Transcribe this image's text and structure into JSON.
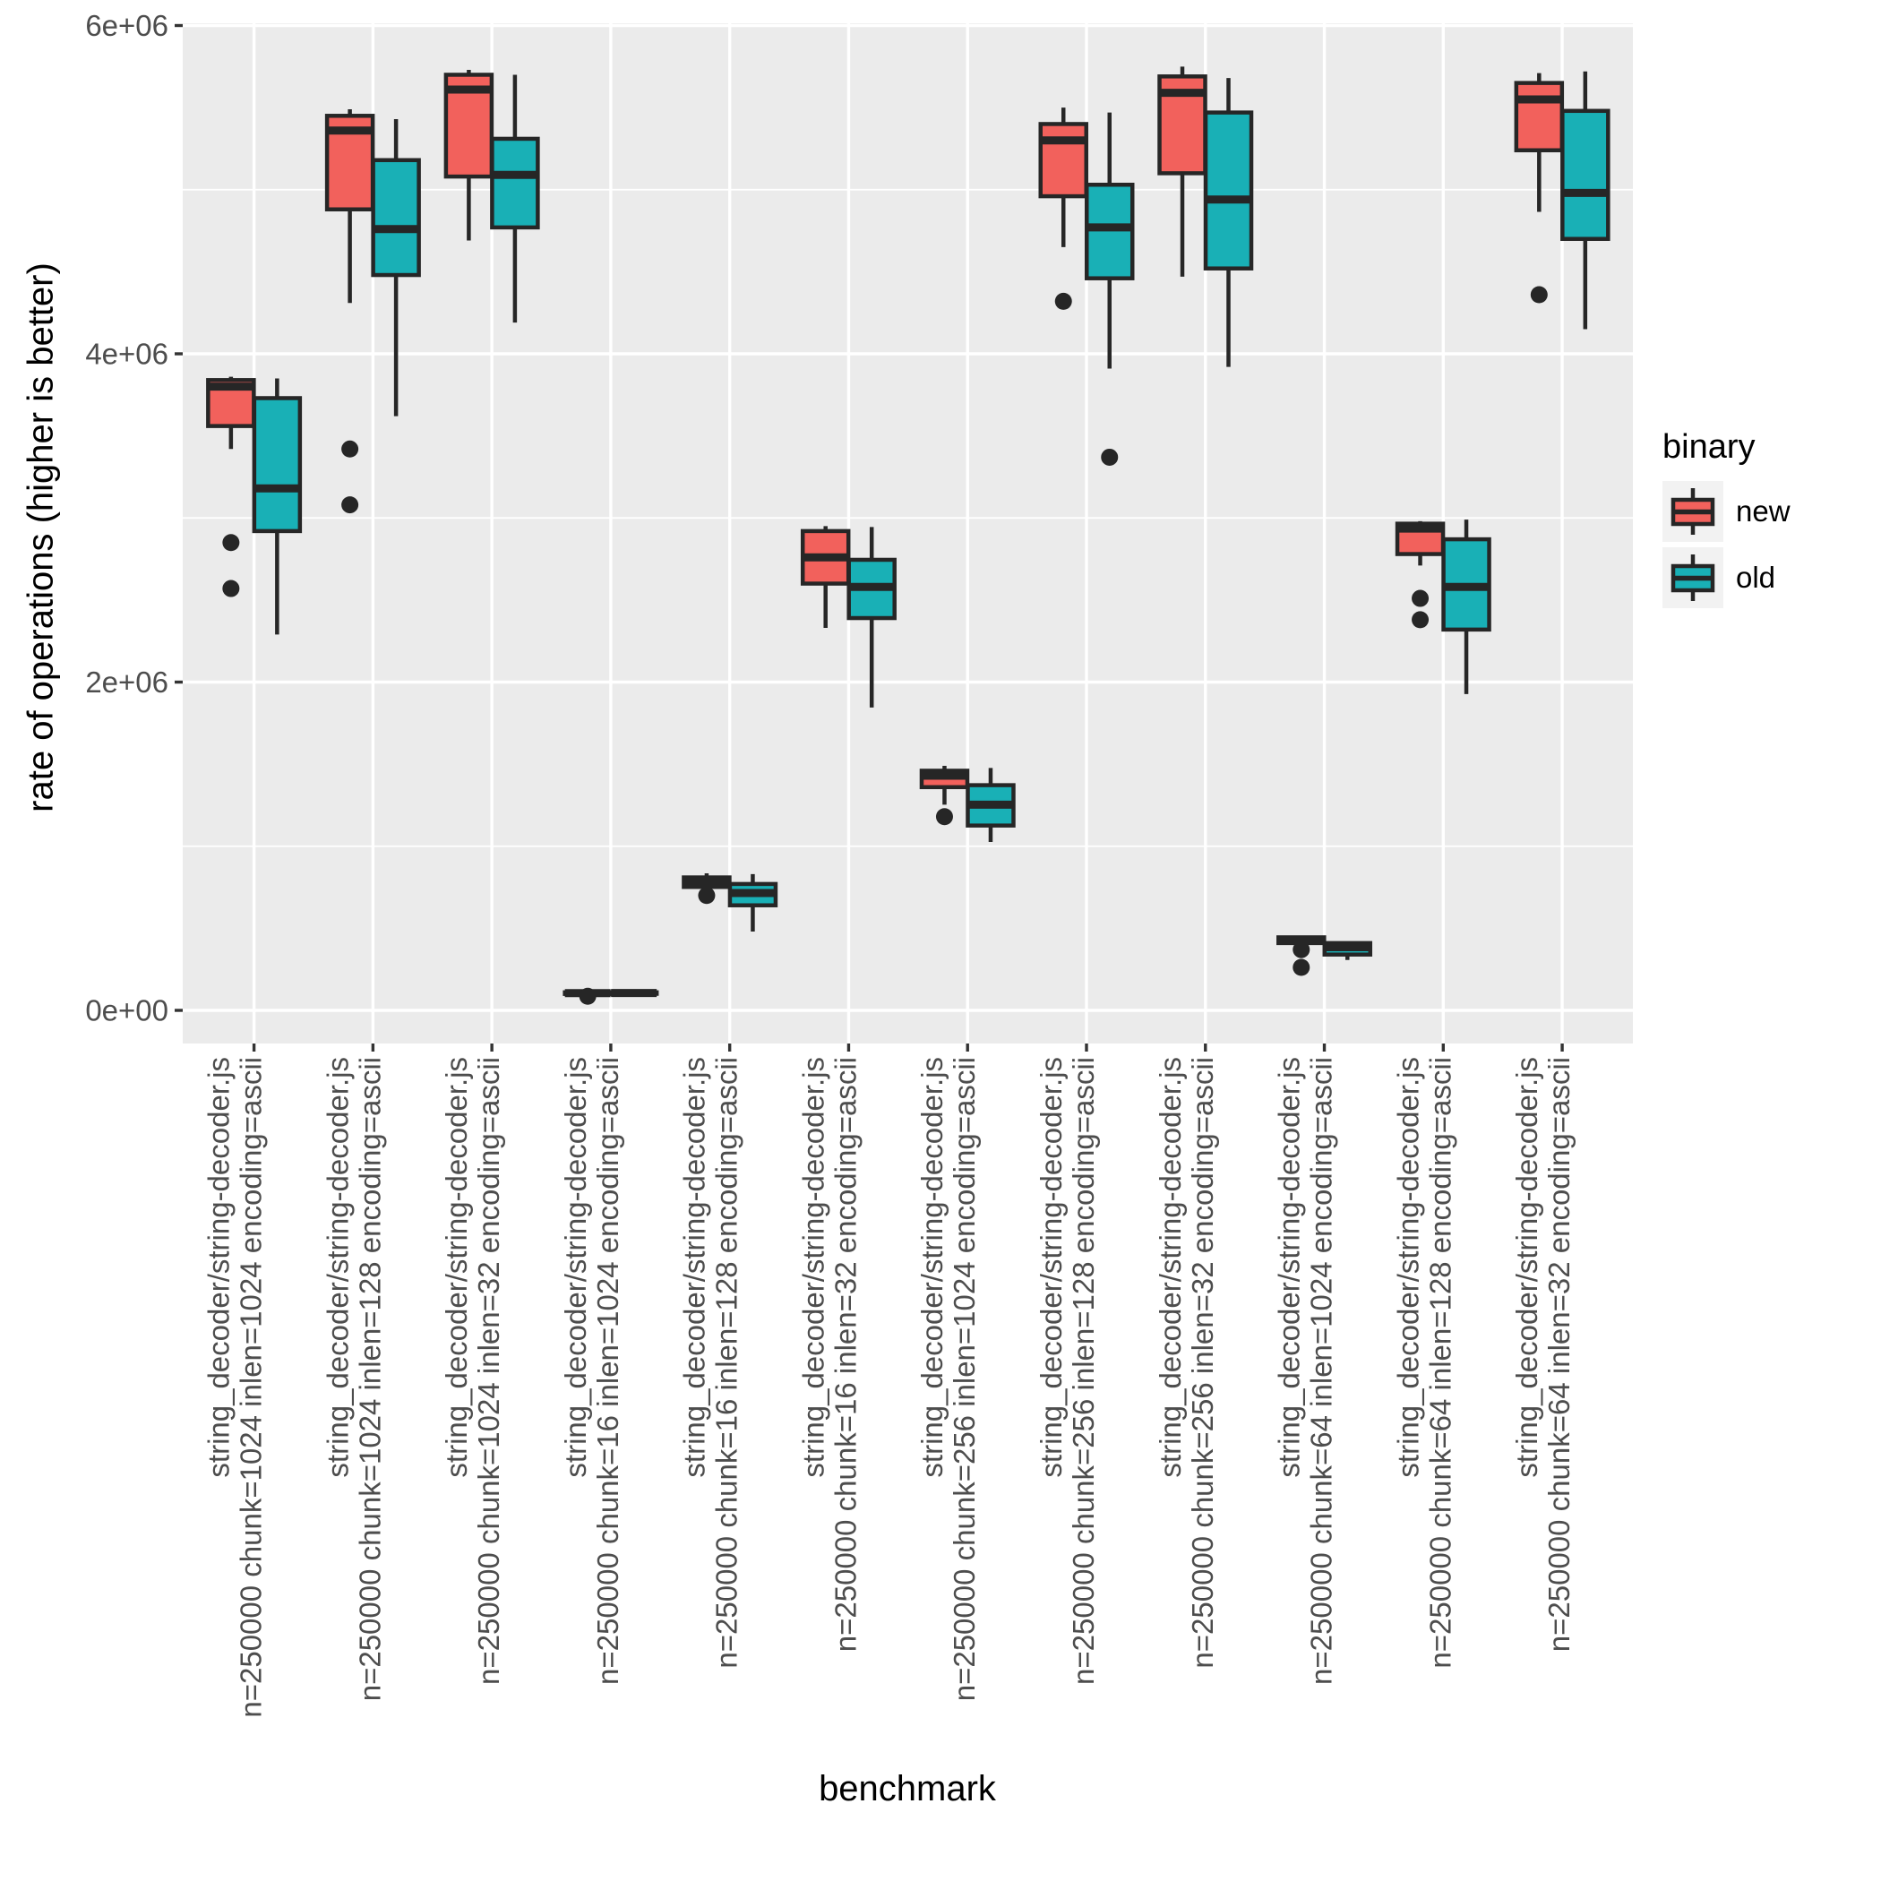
{
  "chart_data": {
    "type": "boxplot",
    "title": "",
    "xlabel": "benchmark",
    "ylabel": "rate of operations (higher is better)",
    "grid": "on",
    "panel_background": "#EBEBEB",
    "gridline_color": "#FFFFFF",
    "box_border_color": "#262626",
    "tick_label_color": "#4D4D4D",
    "ylim": [
      -200000,
      6020000
    ],
    "y_ticks": [
      {
        "v": 0,
        "label": "0e+00"
      },
      {
        "v": 2000000,
        "label": "2e+06"
      },
      {
        "v": 4000000,
        "label": "4e+06"
      },
      {
        "v": 6000000,
        "label": "6e+06"
      }
    ],
    "y_minor": [
      1000000,
      3000000,
      5000000
    ],
    "legend": {
      "title": "binary",
      "position": "right",
      "key_background": "#F2F2F2"
    },
    "series": [
      {
        "name": "new",
        "color": "#F2615C"
      },
      {
        "name": "old",
        "color": "#19B0B6"
      }
    ],
    "categories": [
      {
        "line1": "string_decoder/string-decoder.js",
        "line2": "n=250000 chunk=1024 inlen=1024 encoding=ascii"
      },
      {
        "line1": "string_decoder/string-decoder.js",
        "line2": "n=250000 chunk=1024 inlen=128 encoding=ascii"
      },
      {
        "line1": "string_decoder/string-decoder.js",
        "line2": "n=250000 chunk=1024 inlen=32 encoding=ascii"
      },
      {
        "line1": "string_decoder/string-decoder.js",
        "line2": "n=250000 chunk=16 inlen=1024 encoding=ascii"
      },
      {
        "line1": "string_decoder/string-decoder.js",
        "line2": "n=250000 chunk=16 inlen=128 encoding=ascii"
      },
      {
        "line1": "string_decoder/string-decoder.js",
        "line2": "n=250000 chunk=16 inlen=32 encoding=ascii"
      },
      {
        "line1": "string_decoder/string-decoder.js",
        "line2": "n=250000 chunk=256 inlen=1024 encoding=ascii"
      },
      {
        "line1": "string_decoder/string-decoder.js",
        "line2": "n=250000 chunk=256 inlen=128 encoding=ascii"
      },
      {
        "line1": "string_decoder/string-decoder.js",
        "line2": "n=250000 chunk=256 inlen=32 encoding=ascii"
      },
      {
        "line1": "string_decoder/string-decoder.js",
        "line2": "n=250000 chunk=64 inlen=1024 encoding=ascii"
      },
      {
        "line1": "string_decoder/string-decoder.js",
        "line2": "n=250000 chunk=64 inlen=128 encoding=ascii"
      },
      {
        "line1": "string_decoder/string-decoder.js",
        "line2": "n=250000 chunk=64 inlen=32 encoding=ascii"
      }
    ],
    "boxes": {
      "new": [
        {
          "low": 3420000,
          "q1": 3560000,
          "med": 3800000,
          "q3": 3840000,
          "high": 3860000,
          "outliers": [
            2850000,
            2570000
          ]
        },
        {
          "low": 4310000,
          "q1": 4880000,
          "med": 5360000,
          "q3": 5450000,
          "high": 5490000,
          "outliers": [
            3420000,
            3080000
          ]
        },
        {
          "low": 4690000,
          "q1": 5080000,
          "med": 5610000,
          "q3": 5700000,
          "high": 5730000,
          "outliers": []
        },
        {
          "low": 95000,
          "q1": 100000,
          "med": 105000,
          "q3": 110000,
          "high": 113000,
          "outliers": [
            86000
          ]
        },
        {
          "low": 745000,
          "q1": 752000,
          "med": 780000,
          "q3": 810000,
          "high": 835000,
          "outliers": [
            700000
          ]
        },
        {
          "low": 2330000,
          "q1": 2600000,
          "med": 2760000,
          "q3": 2920000,
          "high": 2950000,
          "outliers": []
        },
        {
          "low": 1253000,
          "q1": 1360000,
          "med": 1430000,
          "q3": 1460000,
          "high": 1490000,
          "outliers": [
            1180000
          ]
        },
        {
          "low": 4650000,
          "q1": 4960000,
          "med": 5300000,
          "q3": 5400000,
          "high": 5500000,
          "outliers": [
            4320000
          ]
        },
        {
          "low": 4470000,
          "q1": 5100000,
          "med": 5590000,
          "q3": 5690000,
          "high": 5750000,
          "outliers": []
        },
        {
          "low": 400000,
          "q1": 410000,
          "med": 430000,
          "q3": 445000,
          "high": 452000,
          "outliers": [
            370000,
            262000
          ]
        },
        {
          "low": 2710000,
          "q1": 2780000,
          "med": 2935000,
          "q3": 2965000,
          "high": 2980000,
          "outliers": [
            2510000,
            2380000
          ]
        },
        {
          "low": 4865000,
          "q1": 5240000,
          "med": 5550000,
          "q3": 5650000,
          "high": 5710000,
          "outliers": [
            4360000
          ]
        }
      ],
      "old": [
        {
          "low": 2290000,
          "q1": 2920000,
          "med": 3180000,
          "q3": 3730000,
          "high": 3850000,
          "outliers": []
        },
        {
          "low": 3620000,
          "q1": 4480000,
          "med": 4760000,
          "q3": 5180000,
          "high": 5430000,
          "outliers": []
        },
        {
          "low": 4190000,
          "q1": 4770000,
          "med": 5090000,
          "q3": 5310000,
          "high": 5700000,
          "outliers": []
        },
        {
          "low": 96000,
          "q1": 101000,
          "med": 106000,
          "q3": 110000,
          "high": 113000,
          "outliers": []
        },
        {
          "low": 480000,
          "q1": 640000,
          "med": 715000,
          "q3": 770000,
          "high": 830000,
          "outliers": []
        },
        {
          "low": 1845000,
          "q1": 2390000,
          "med": 2580000,
          "q3": 2745000,
          "high": 2945000,
          "outliers": []
        },
        {
          "low": 1026000,
          "q1": 1126000,
          "med": 1253000,
          "q3": 1372000,
          "high": 1477000,
          "outliers": []
        },
        {
          "low": 3910000,
          "q1": 4460000,
          "med": 4770000,
          "q3": 5030000,
          "high": 5470000,
          "outliers": [
            3370000
          ]
        },
        {
          "low": 3920000,
          "q1": 4520000,
          "med": 4940000,
          "q3": 5470000,
          "high": 5680000,
          "outliers": []
        },
        {
          "low": 307000,
          "q1": 340000,
          "med": 385000,
          "q3": 410000,
          "high": 420000,
          "outliers": []
        },
        {
          "low": 1927000,
          "q1": 2320000,
          "med": 2580000,
          "q3": 2870000,
          "high": 2990000,
          "outliers": []
        },
        {
          "low": 4150000,
          "q1": 4700000,
          "med": 4980000,
          "q3": 5480000,
          "high": 5720000,
          "outliers": []
        }
      ]
    }
  }
}
